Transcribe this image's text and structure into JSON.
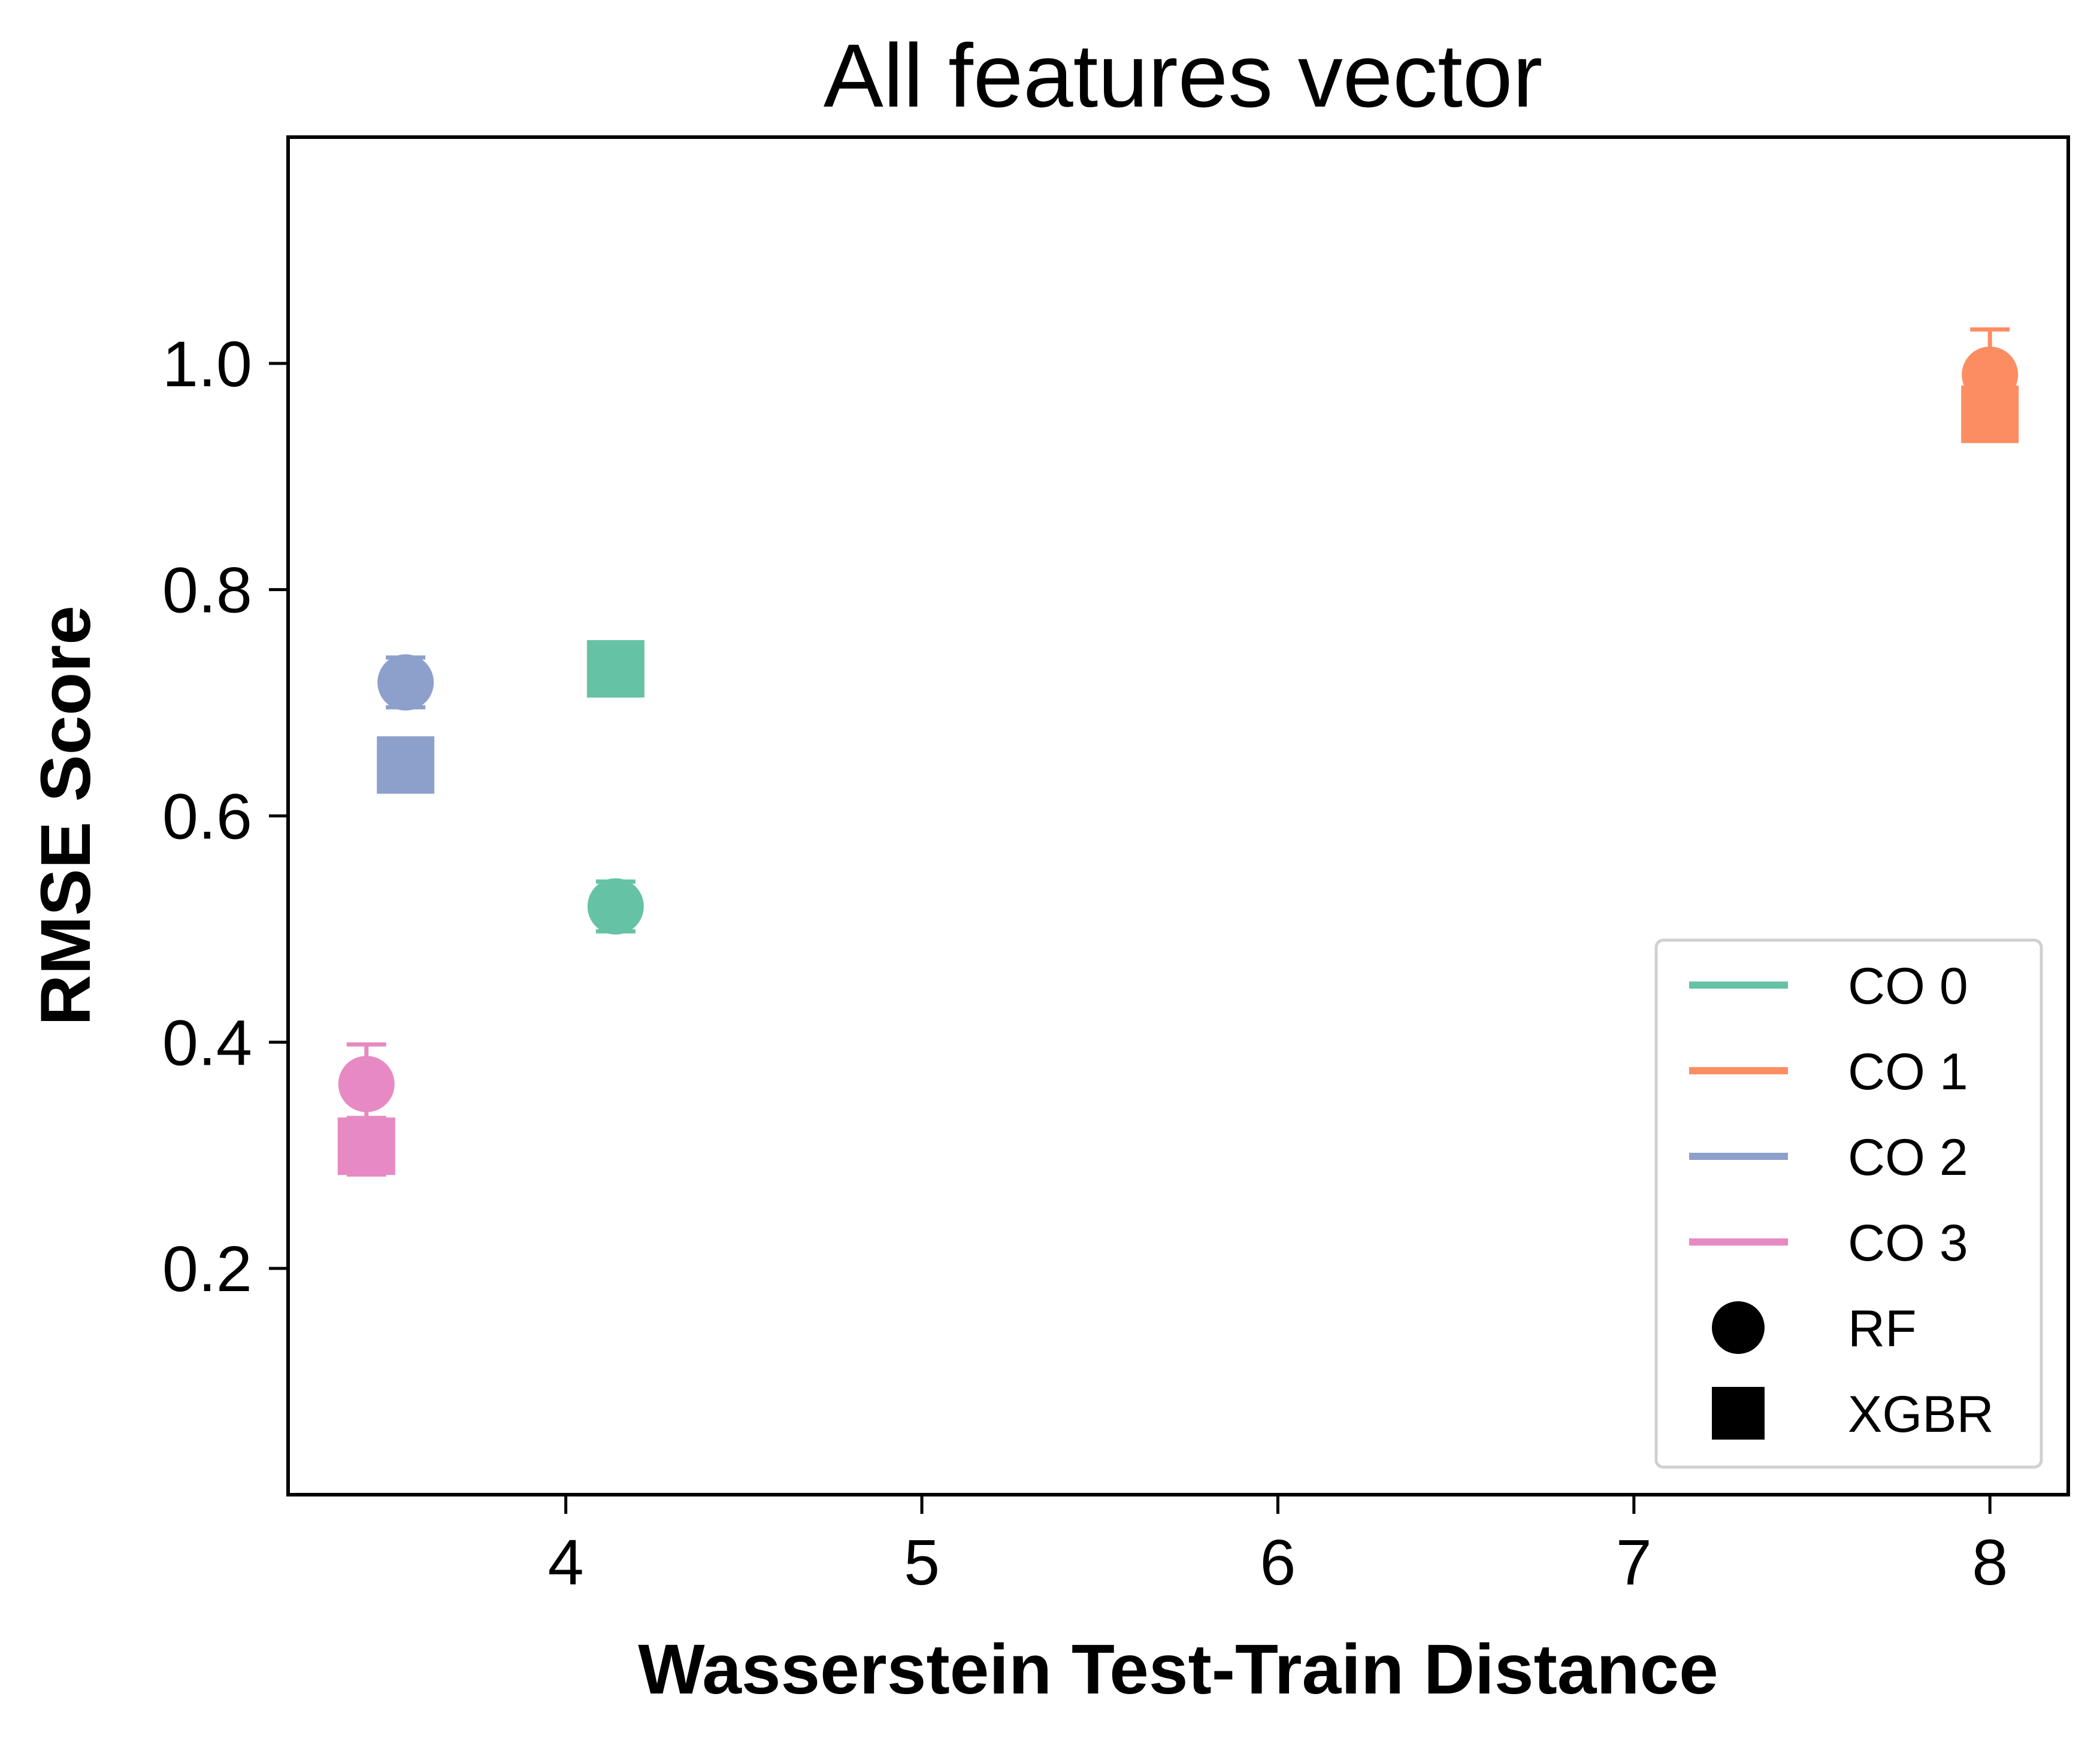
{
  "chart_data": {
    "type": "scatter",
    "title": "All features vector",
    "xlabel": "Wasserstein Test-Train Distance",
    "ylabel": "RMSE Score",
    "xlim": [
      3.22,
      8.22
    ],
    "ylim": [
      0.0,
      1.2
    ],
    "xticks": [
      {
        "value": 4,
        "label": "4"
      },
      {
        "value": 5,
        "label": "5"
      },
      {
        "value": 6,
        "label": "6"
      },
      {
        "value": 7,
        "label": "7"
      },
      {
        "value": 8,
        "label": "8"
      }
    ],
    "yticks": [
      {
        "value": 0.2,
        "label": "0.2"
      },
      {
        "value": 0.4,
        "label": "0.4"
      },
      {
        "value": 0.6,
        "label": "0.6"
      },
      {
        "value": 0.8,
        "label": "0.8"
      },
      {
        "value": 1.0,
        "label": "1.0"
      }
    ],
    "grid": false,
    "legend_position": "bottom-right",
    "series": [
      {
        "name": "CO 0",
        "color": "#66c2a5",
        "points": [
          {
            "x": 4.14,
            "y": 0.52,
            "err": 0.022,
            "model": "RF"
          },
          {
            "x": 4.14,
            "y": 0.73,
            "err": 0.0,
            "model": "XGBR"
          }
        ]
      },
      {
        "name": "CO 1",
        "color": "#fc8d62",
        "points": [
          {
            "x": 8.0,
            "y": 0.99,
            "err": 0.04,
            "model": "RF"
          },
          {
            "x": 8.0,
            "y": 0.955,
            "err": 0.0,
            "model": "XGBR"
          }
        ]
      },
      {
        "name": "CO 2",
        "color": "#8da0cb",
        "points": [
          {
            "x": 3.55,
            "y": 0.718,
            "err": 0.022,
            "model": "RF"
          },
          {
            "x": 3.55,
            "y": 0.645,
            "err": 0.0,
            "model": "XGBR"
          }
        ]
      },
      {
        "name": "CO 3",
        "color": "#e78ac3",
        "points": [
          {
            "x": 3.44,
            "y": 0.363,
            "err": 0.035,
            "model": "RF"
          },
          {
            "x": 3.44,
            "y": 0.308,
            "err": 0.025,
            "model": "XGBR"
          }
        ]
      }
    ],
    "legend": [
      {
        "label": "CO 0",
        "kind": "line",
        "color": "#66c2a5"
      },
      {
        "label": "CO 1",
        "kind": "line",
        "color": "#fc8d62"
      },
      {
        "label": "CO 2",
        "kind": "line",
        "color": "#8da0cb"
      },
      {
        "label": "CO 3",
        "kind": "line",
        "color": "#e78ac3"
      },
      {
        "label": "RF",
        "kind": "circle",
        "color": "#000000"
      },
      {
        "label": "XGBR",
        "kind": "square",
        "color": "#000000"
      }
    ]
  }
}
